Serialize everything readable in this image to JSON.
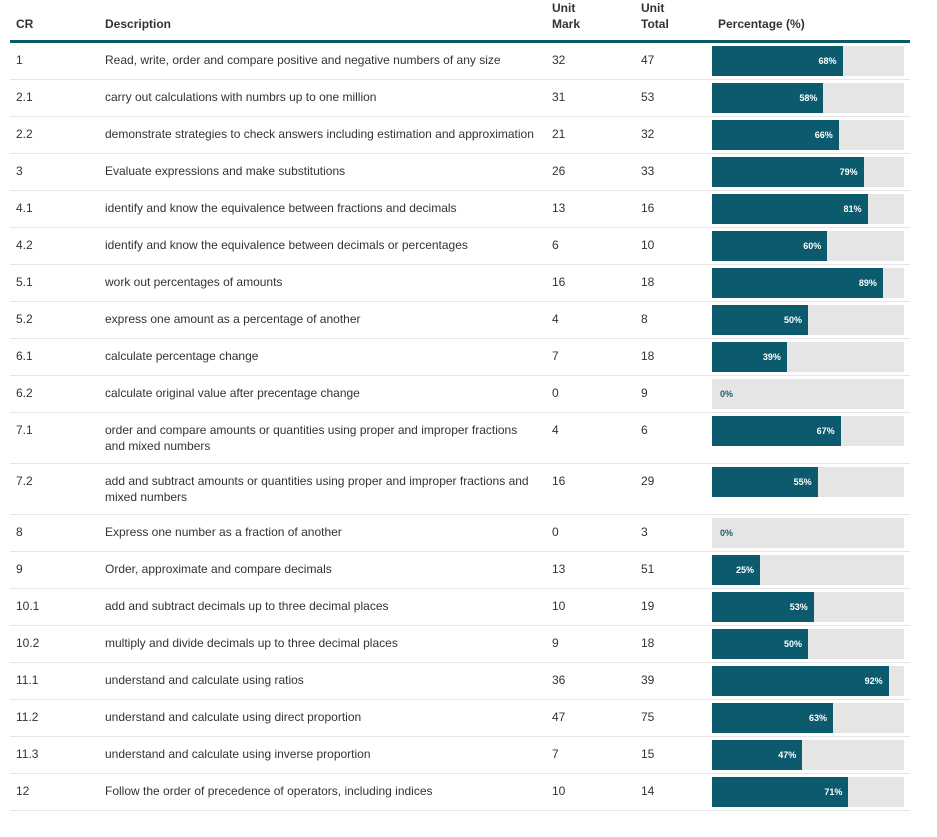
{
  "header": {
    "cr": "CR",
    "description": "Description",
    "mark": "Unit\nMark",
    "total": "Unit\nTotal",
    "percentage": "Percentage (%)"
  },
  "colors": {
    "bar": "#0b5a6e",
    "track": "#e5e5e5",
    "header_rule": "#0d5866"
  },
  "rows": [
    {
      "cr": "1",
      "description": "Read, write, order and compare positive and negative numbers of any size",
      "mark": "32",
      "total": "47",
      "pct": 68,
      "pct_label": "68%"
    },
    {
      "cr": "2.1",
      "description": "carry out calculations with numbrs up to one million",
      "mark": "31",
      "total": "53",
      "pct": 58,
      "pct_label": "58%"
    },
    {
      "cr": "2.2",
      "description": "demonstrate strategies to check answers including estimation and approximation",
      "mark": "21",
      "total": "32",
      "pct": 66,
      "pct_label": "66%"
    },
    {
      "cr": "3",
      "description": "Evaluate expressions and make substitutions",
      "mark": "26",
      "total": "33",
      "pct": 79,
      "pct_label": "79%"
    },
    {
      "cr": "4.1",
      "description": "identify and know the equivalence between fractions and decimals",
      "mark": "13",
      "total": "16",
      "pct": 81,
      "pct_label": "81%"
    },
    {
      "cr": "4.2",
      "description": "identify and know the equivalence between decimals or percentages",
      "mark": "6",
      "total": "10",
      "pct": 60,
      "pct_label": "60%"
    },
    {
      "cr": "5.1",
      "description": "work out percentages of amounts",
      "mark": "16",
      "total": "18",
      "pct": 89,
      "pct_label": "89%"
    },
    {
      "cr": "5.2",
      "description": "express one amount as a percentage of another",
      "mark": "4",
      "total": "8",
      "pct": 50,
      "pct_label": "50%"
    },
    {
      "cr": "6.1",
      "description": "calculate percentage change",
      "mark": "7",
      "total": "18",
      "pct": 39,
      "pct_label": "39%"
    },
    {
      "cr": "6.2",
      "description": "calculate original value after precentage change",
      "mark": "0",
      "total": "9",
      "pct": 0,
      "pct_label": "0%"
    },
    {
      "cr": "7.1",
      "description": "order and compare amounts or quantities using proper and improper fractions and mixed numbers",
      "mark": "4",
      "total": "6",
      "pct": 67,
      "pct_label": "67%"
    },
    {
      "cr": "7.2",
      "description": "add and subtract amounts or quantities using proper and improper fractions and mixed numbers",
      "mark": "16",
      "total": "29",
      "pct": 55,
      "pct_label": "55%"
    },
    {
      "cr": "8",
      "description": "Express one number as a fraction of another",
      "mark": "0",
      "total": "3",
      "pct": 0,
      "pct_label": "0%"
    },
    {
      "cr": "9",
      "description": "Order, approximate and compare decimals",
      "mark": "13",
      "total": "51",
      "pct": 25,
      "pct_label": "25%"
    },
    {
      "cr": "10.1",
      "description": "add and subtract decimals up to three decimal places",
      "mark": "10",
      "total": "19",
      "pct": 53,
      "pct_label": "53%"
    },
    {
      "cr": "10.2",
      "description": "multiply and divide decimals up to three decimal places",
      "mark": "9",
      "total": "18",
      "pct": 50,
      "pct_label": "50%"
    },
    {
      "cr": "11.1",
      "description": "understand and calculate using ratios",
      "mark": "36",
      "total": "39",
      "pct": 92,
      "pct_label": "92%"
    },
    {
      "cr": "11.2",
      "description": "understand and calculate using direct proportion",
      "mark": "47",
      "total": "75",
      "pct": 63,
      "pct_label": "63%"
    },
    {
      "cr": "11.3",
      "description": "understand and calculate using inverse proportion",
      "mark": "7",
      "total": "15",
      "pct": 47,
      "pct_label": "47%"
    },
    {
      "cr": "12",
      "description": "Follow the order of precedence of operators, including indices",
      "mark": "10",
      "total": "14",
      "pct": 71,
      "pct_label": "71%"
    }
  ]
}
